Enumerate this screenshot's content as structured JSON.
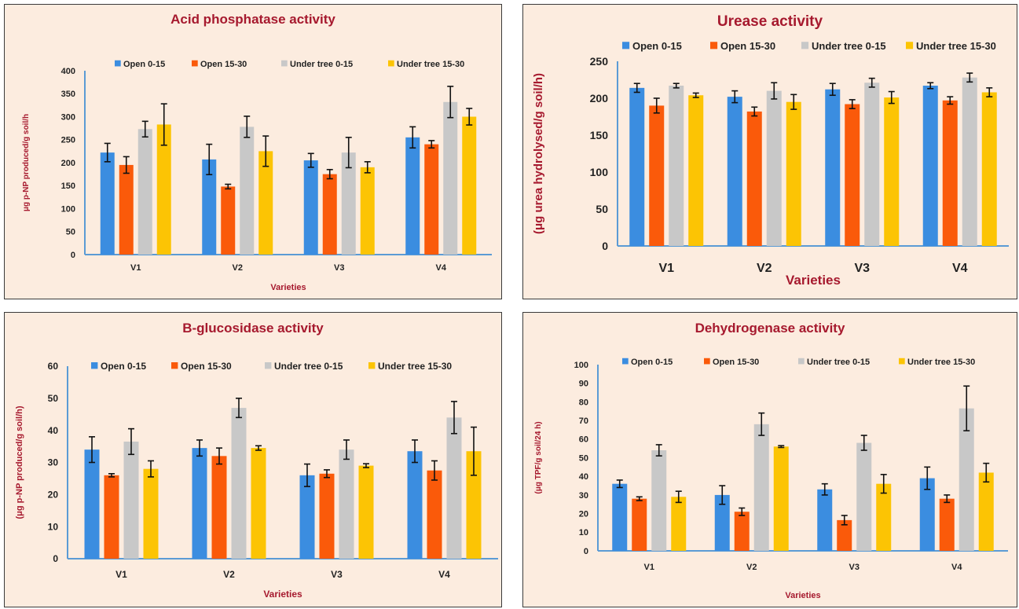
{
  "colors": {
    "series": [
      "#3b8de0",
      "#fa5a0a",
      "#c8c8c8",
      "#fcc404"
    ],
    "title": "#a6192e",
    "axis_line": "#5b9bd5",
    "panel_bg": "#fcecdf",
    "text": "#222222"
  },
  "chart_data": [
    {
      "type": "bar",
      "title": "Acid phosphatase activity",
      "xlabel": "Varieties",
      "ylabel": "μg p-NP produced/g soil/h",
      "categories": [
        "V1",
        "V2",
        "V3",
        "V4"
      ],
      "ylim": [
        0,
        400
      ],
      "yticks": [
        0,
        50,
        100,
        150,
        200,
        250,
        300,
        350,
        400
      ],
      "legend_position": "top",
      "grid": false,
      "series": [
        {
          "name": "Open 0-15",
          "values": [
            222,
            207,
            205,
            255
          ],
          "errors": [
            20,
            33,
            15,
            23
          ]
        },
        {
          "name": "Open 15-30",
          "values": [
            195,
            148,
            175,
            240
          ],
          "errors": [
            18,
            5,
            10,
            8
          ]
        },
        {
          "name": "Under tree 0-15",
          "values": [
            273,
            278,
            222,
            332
          ],
          "errors": [
            17,
            23,
            33,
            34
          ]
        },
        {
          "name": "Under tree 15-30",
          "values": [
            283,
            225,
            190,
            300
          ],
          "errors": [
            45,
            33,
            12,
            18
          ]
        }
      ]
    },
    {
      "type": "bar",
      "title": "Urease activity",
      "xlabel": "Varieties",
      "ylabel": "(μg urea hydrolysed/g soil/h)",
      "categories": [
        "V1",
        "V2",
        "V3",
        "V4"
      ],
      "ylim": [
        0,
        250
      ],
      "yticks": [
        0,
        50,
        100,
        150,
        200,
        250
      ],
      "legend_position": "top",
      "grid": false,
      "series": [
        {
          "name": "Open 0-15",
          "values": [
            214,
            202,
            212,
            217
          ],
          "errors": [
            6,
            8,
            8,
            4
          ]
        },
        {
          "name": "Open 15-30",
          "values": [
            190,
            182,
            192,
            197
          ],
          "errors": [
            10,
            6,
            6,
            5
          ]
        },
        {
          "name": "Under tree 0-15",
          "values": [
            217,
            210,
            221,
            228
          ],
          "errors": [
            3,
            11,
            6,
            6
          ]
        },
        {
          "name": "Under tree 15-30",
          "values": [
            204,
            195,
            201,
            208
          ],
          "errors": [
            3,
            10,
            8,
            6
          ]
        }
      ]
    },
    {
      "type": "bar",
      "title": "B-glucosidase activity",
      "xlabel": "Varieties",
      "ylabel": "(μg p-NP produced/g soil/h)",
      "categories": [
        "V1",
        "V2",
        "V3",
        "V4"
      ],
      "ylim": [
        0,
        60
      ],
      "yticks": [
        0,
        10,
        20,
        30,
        40,
        50,
        60
      ],
      "legend_position": "top",
      "grid": false,
      "series": [
        {
          "name": "Open 0-15",
          "values": [
            34,
            34.5,
            26,
            33.5
          ],
          "errors": [
            4,
            2.5,
            3.5,
            3.5
          ]
        },
        {
          "name": "Open 15-30",
          "values": [
            26,
            32,
            26.5,
            27.5
          ],
          "errors": [
            0.5,
            2.5,
            1.2,
            3
          ]
        },
        {
          "name": "Under tree 0-15",
          "values": [
            36.5,
            47,
            34,
            44
          ],
          "errors": [
            4,
            3,
            3,
            5
          ]
        },
        {
          "name": "Under tree 15-30",
          "values": [
            28,
            34.5,
            29,
            33.5
          ],
          "errors": [
            2.5,
            0.7,
            0.6,
            7.5
          ]
        }
      ]
    },
    {
      "type": "bar",
      "title": "Dehydrogenase activity",
      "xlabel": "Varieties",
      "ylabel": "(μg TPF/g soil/24 h)",
      "categories": [
        "V1",
        "V2",
        "V3",
        "V4"
      ],
      "ylim": [
        0,
        100
      ],
      "yticks": [
        0,
        10,
        20,
        30,
        40,
        50,
        60,
        70,
        80,
        90,
        100
      ],
      "legend_position": "top",
      "grid": false,
      "series": [
        {
          "name": "Open 0-15",
          "values": [
            36,
            30,
            33,
            39
          ],
          "errors": [
            2,
            5,
            3,
            6
          ]
        },
        {
          "name": "Open 15-30",
          "values": [
            28,
            21,
            16.5,
            28
          ],
          "errors": [
            1,
            2,
            2.5,
            2
          ]
        },
        {
          "name": "Under tree 0-15",
          "values": [
            54,
            68,
            58,
            76.5
          ],
          "errors": [
            3,
            6,
            4,
            12
          ]
        },
        {
          "name": "Under tree 15-30",
          "values": [
            29,
            56,
            36,
            42
          ],
          "errors": [
            3,
            0.5,
            5,
            5
          ]
        }
      ]
    }
  ]
}
